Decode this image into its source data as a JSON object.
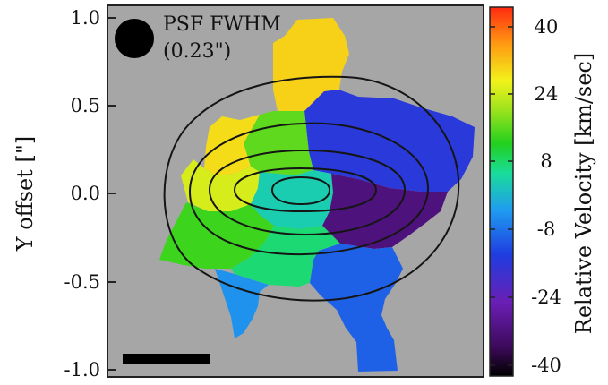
{
  "chart_data": {
    "type": "heatmap",
    "title": "",
    "xlabel": "",
    "ylabel": "Y offset [\"]",
    "ylim": [
      -1.0,
      1.0
    ],
    "yticks": [
      "1.0",
      "0.5",
      "0.0",
      "-0.5",
      "-1.0"
    ],
    "colorbar": {
      "label": "Relative Velocity [km/sec]",
      "range": [
        -40,
        40
      ],
      "ticks": [
        "40",
        "24",
        "8",
        "-8",
        "-24",
        "-40"
      ]
    },
    "annotation": {
      "line1": "PSF FWHM",
      "line2": "(0.23\")"
    },
    "background_color": "#a6a6a6",
    "contour_levels": 5,
    "scale_bar": true,
    "velocity_regions": [
      {
        "region": "top-extension",
        "value": 27
      },
      {
        "region": "upper-left",
        "value": 26
      },
      {
        "region": "upper-center",
        "value": 14
      },
      {
        "region": "upper-right",
        "value": -15
      },
      {
        "region": "far-left",
        "value": 22
      },
      {
        "region": "center",
        "value": 2
      },
      {
        "region": "right-inner",
        "value": -30
      },
      {
        "region": "lower-left",
        "value": 12
      },
      {
        "region": "lower-center",
        "value": 6
      },
      {
        "region": "bottom-tail",
        "value": -5
      },
      {
        "region": "lower-right-tail",
        "value": -10
      }
    ]
  }
}
